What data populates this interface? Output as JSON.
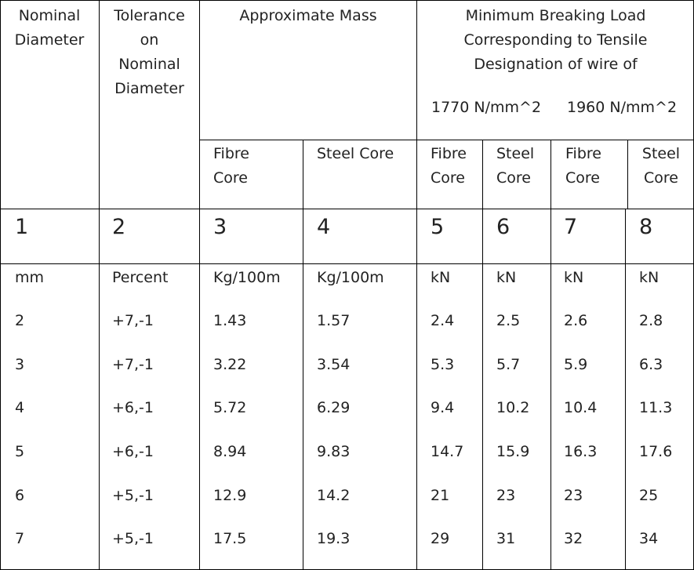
{
  "header": {
    "nominal_diameter": "Nominal\nDiameter",
    "tolerance": "Tolerance\non\nNominal\nDiameter",
    "approx_mass": "Approximate Mass",
    "min_breaking_load": "Minimum Breaking Load\nCorresponding to Tensile\nDesignation of wire of",
    "grade_1770": "1770 N/mm^2",
    "grade_1960": "1960 N/mm^2",
    "core_labels": [
      "Fibre\nCore",
      "Steel Core",
      "Fibre\nCore",
      "Steel\nCore",
      "Fibre\nCore",
      "Steel\nCore"
    ],
    "column_numbers": [
      "1",
      "2",
      "3",
      "4",
      "5",
      "6",
      "7",
      "8"
    ]
  },
  "units": [
    "mm",
    "Percent",
    "Kg/100m",
    "Kg/100m",
    "kN",
    "kN",
    "kN",
    "kN"
  ],
  "rows": [
    [
      "2",
      "+7,-1",
      "1.43",
      "1.57",
      "2.4",
      "2.5",
      "2.6",
      "2.8"
    ],
    [
      "3",
      "+7,-1",
      "3.22",
      "3.54",
      "5.3",
      "5.7",
      "5.9",
      "6.3"
    ],
    [
      "4",
      "+6,-1",
      "5.72",
      "6.29",
      "9.4",
      "10.2",
      "10.4",
      "11.3"
    ],
    [
      "5",
      "+6,-1",
      "8.94",
      "9.83",
      "14.7",
      "15.9",
      "16.3",
      "17.6"
    ],
    [
      "6",
      "+5,-1",
      "12.9",
      "14.2",
      "21",
      "23",
      "23",
      "25"
    ],
    [
      "7",
      "+5,-1",
      "17.5",
      "19.3",
      "29",
      "31",
      "32",
      "34"
    ]
  ]
}
